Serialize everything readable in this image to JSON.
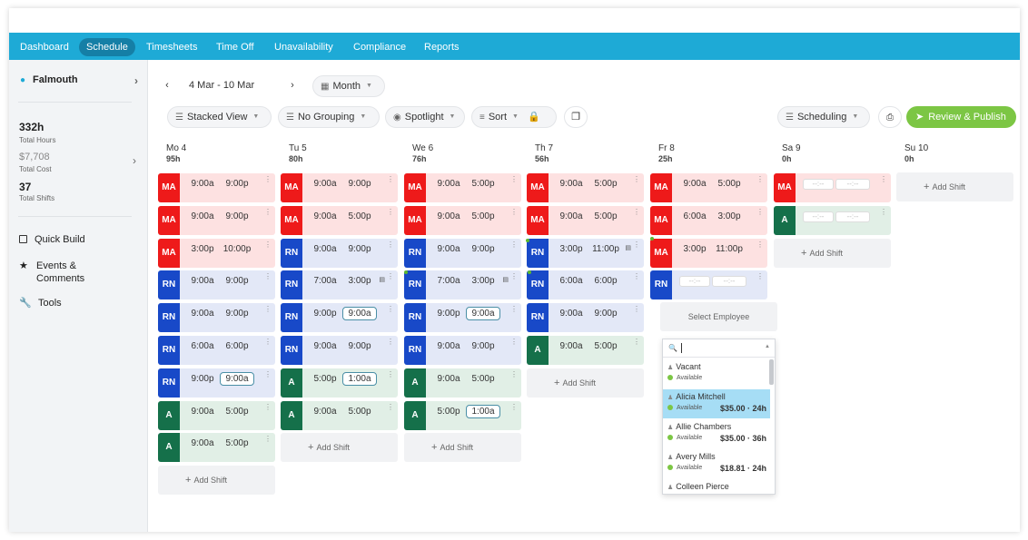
{
  "nav": {
    "items": [
      "Dashboard",
      "Schedule",
      "Timesheets",
      "Time Off",
      "Unavailability",
      "Compliance",
      "Reports"
    ],
    "active": "Schedule"
  },
  "sidebar": {
    "location": "Falmouth",
    "total_hours_value": "332h",
    "total_hours_label": "Total Hours",
    "total_cost_value": "$7,708",
    "total_cost_label": "Total Cost",
    "total_shifts_value": "37",
    "total_shifts_label": "Total Shifts",
    "menu": [
      {
        "icon": "quick-build-icon",
        "label": "Quick Build"
      },
      {
        "icon": "star-icon",
        "label": "Events & Comments"
      },
      {
        "icon": "wrench-icon",
        "label": "Tools"
      }
    ]
  },
  "toolbar": {
    "date_range": "4 Mar - 10 Mar",
    "period": "Month",
    "view": "Stacked View",
    "grouping": "No Grouping",
    "spotlight": "Spotlight",
    "sort": "Sort",
    "mode": "Scheduling",
    "publish": "Review & Publish"
  },
  "days": [
    {
      "name": "Mo 4",
      "hours": "95h"
    },
    {
      "name": "Tu 5",
      "hours": "80h"
    },
    {
      "name": "We 6",
      "hours": "76h"
    },
    {
      "name": "Th 7",
      "hours": "56h"
    },
    {
      "name": "Fr 8",
      "hours": "25h"
    },
    {
      "name": "Sa 9",
      "hours": "0h"
    },
    {
      "name": "Su 10",
      "hours": "0h"
    }
  ],
  "shifts": [
    [
      {
        "role": "MA",
        "start": "9:00a",
        "end": "9:00p"
      },
      {
        "role": "MA",
        "start": "9:00a",
        "end": "9:00p"
      },
      {
        "role": "MA",
        "start": "3:00p",
        "end": "10:00p"
      },
      {
        "role": "RN",
        "start": "9:00a",
        "end": "9:00p"
      },
      {
        "role": "RN",
        "start": "9:00a",
        "end": "9:00p"
      },
      {
        "role": "RN",
        "start": "6:00a",
        "end": "6:00p"
      },
      {
        "role": "RN",
        "start": "9:00p",
        "end": "9:00a",
        "boxed": true
      },
      {
        "role": "A",
        "start": "9:00a",
        "end": "5:00p"
      },
      {
        "role": "A",
        "start": "9:00a",
        "end": "5:00p"
      }
    ],
    [
      {
        "role": "MA",
        "start": "9:00a",
        "end": "9:00p"
      },
      {
        "role": "MA",
        "start": "9:00a",
        "end": "5:00p"
      },
      {
        "role": "RN",
        "start": "9:00a",
        "end": "9:00p"
      },
      {
        "role": "RN",
        "start": "7:00a",
        "end": "3:00p",
        "note": true
      },
      {
        "role": "RN",
        "start": "9:00p",
        "end": "9:00a",
        "boxed": true
      },
      {
        "role": "RN",
        "start": "9:00a",
        "end": "9:00p"
      },
      {
        "role": "A",
        "start": "5:00p",
        "end": "1:00a",
        "boxed": true
      },
      {
        "role": "A",
        "start": "9:00a",
        "end": "5:00p"
      }
    ],
    [
      {
        "role": "MA",
        "start": "9:00a",
        "end": "5:00p"
      },
      {
        "role": "MA",
        "start": "9:00a",
        "end": "5:00p"
      },
      {
        "role": "RN",
        "start": "9:00a",
        "end": "9:00p"
      },
      {
        "role": "RN",
        "start": "7:00a",
        "end": "3:00p",
        "note": true
      },
      {
        "role": "RN",
        "start": "9:00p",
        "end": "9:00a",
        "boxed": true
      },
      {
        "role": "RN",
        "start": "9:00a",
        "end": "9:00p"
      },
      {
        "role": "A",
        "start": "9:00a",
        "end": "5:00p"
      },
      {
        "role": "A",
        "start": "5:00p",
        "end": "1:00a",
        "boxed": true
      }
    ],
    [
      {
        "role": "MA",
        "start": "9:00a",
        "end": "5:00p"
      },
      {
        "role": "MA",
        "start": "9:00a",
        "end": "5:00p"
      },
      {
        "role": "RN",
        "start": "3:00p",
        "end": "11:00p",
        "note": true
      },
      {
        "role": "RN",
        "start": "6:00a",
        "end": "6:00p"
      },
      {
        "role": "RN",
        "start": "9:00a",
        "end": "9:00p"
      },
      {
        "role": "A",
        "start": "9:00a",
        "end": "5:00p"
      }
    ],
    [
      {
        "role": "MA",
        "start": "9:00a",
        "end": "5:00p"
      },
      {
        "role": "MA",
        "start": "6:00a",
        "end": "3:00p"
      },
      {
        "role": "MA",
        "start": "3:00p",
        "end": "11:00p"
      },
      {
        "role": "RN",
        "start": "--:--",
        "end": "--:--",
        "empty": true
      }
    ],
    [
      {
        "role": "MA",
        "start": "--:--",
        "end": "--:--",
        "empty": true
      },
      {
        "role": "A",
        "start": "--:--",
        "end": "--:--",
        "empty": true
      }
    ],
    []
  ],
  "add_shift_label": "Add Shift",
  "select_employee_label": "Select Employee",
  "employees": [
    {
      "name": "Vacant",
      "status": "Available",
      "rate": ""
    },
    {
      "name": "Alicia Mitchell",
      "status": "Available",
      "rate": "$35.00 · 24h",
      "selected": true
    },
    {
      "name": "Allie Chambers",
      "status": "Available",
      "rate": "$35.00 · 36h"
    },
    {
      "name": "Avery Mills",
      "status": "Available",
      "rate": "$18.81 · 24h"
    },
    {
      "name": "Colleen Pierce",
      "status": "",
      "rate": ""
    }
  ],
  "colors": {
    "nav": "#1eaad6",
    "MA": "#ee1a1a",
    "RN": "#1849c8",
    "A": "#15704a",
    "publish": "#7cc644"
  }
}
